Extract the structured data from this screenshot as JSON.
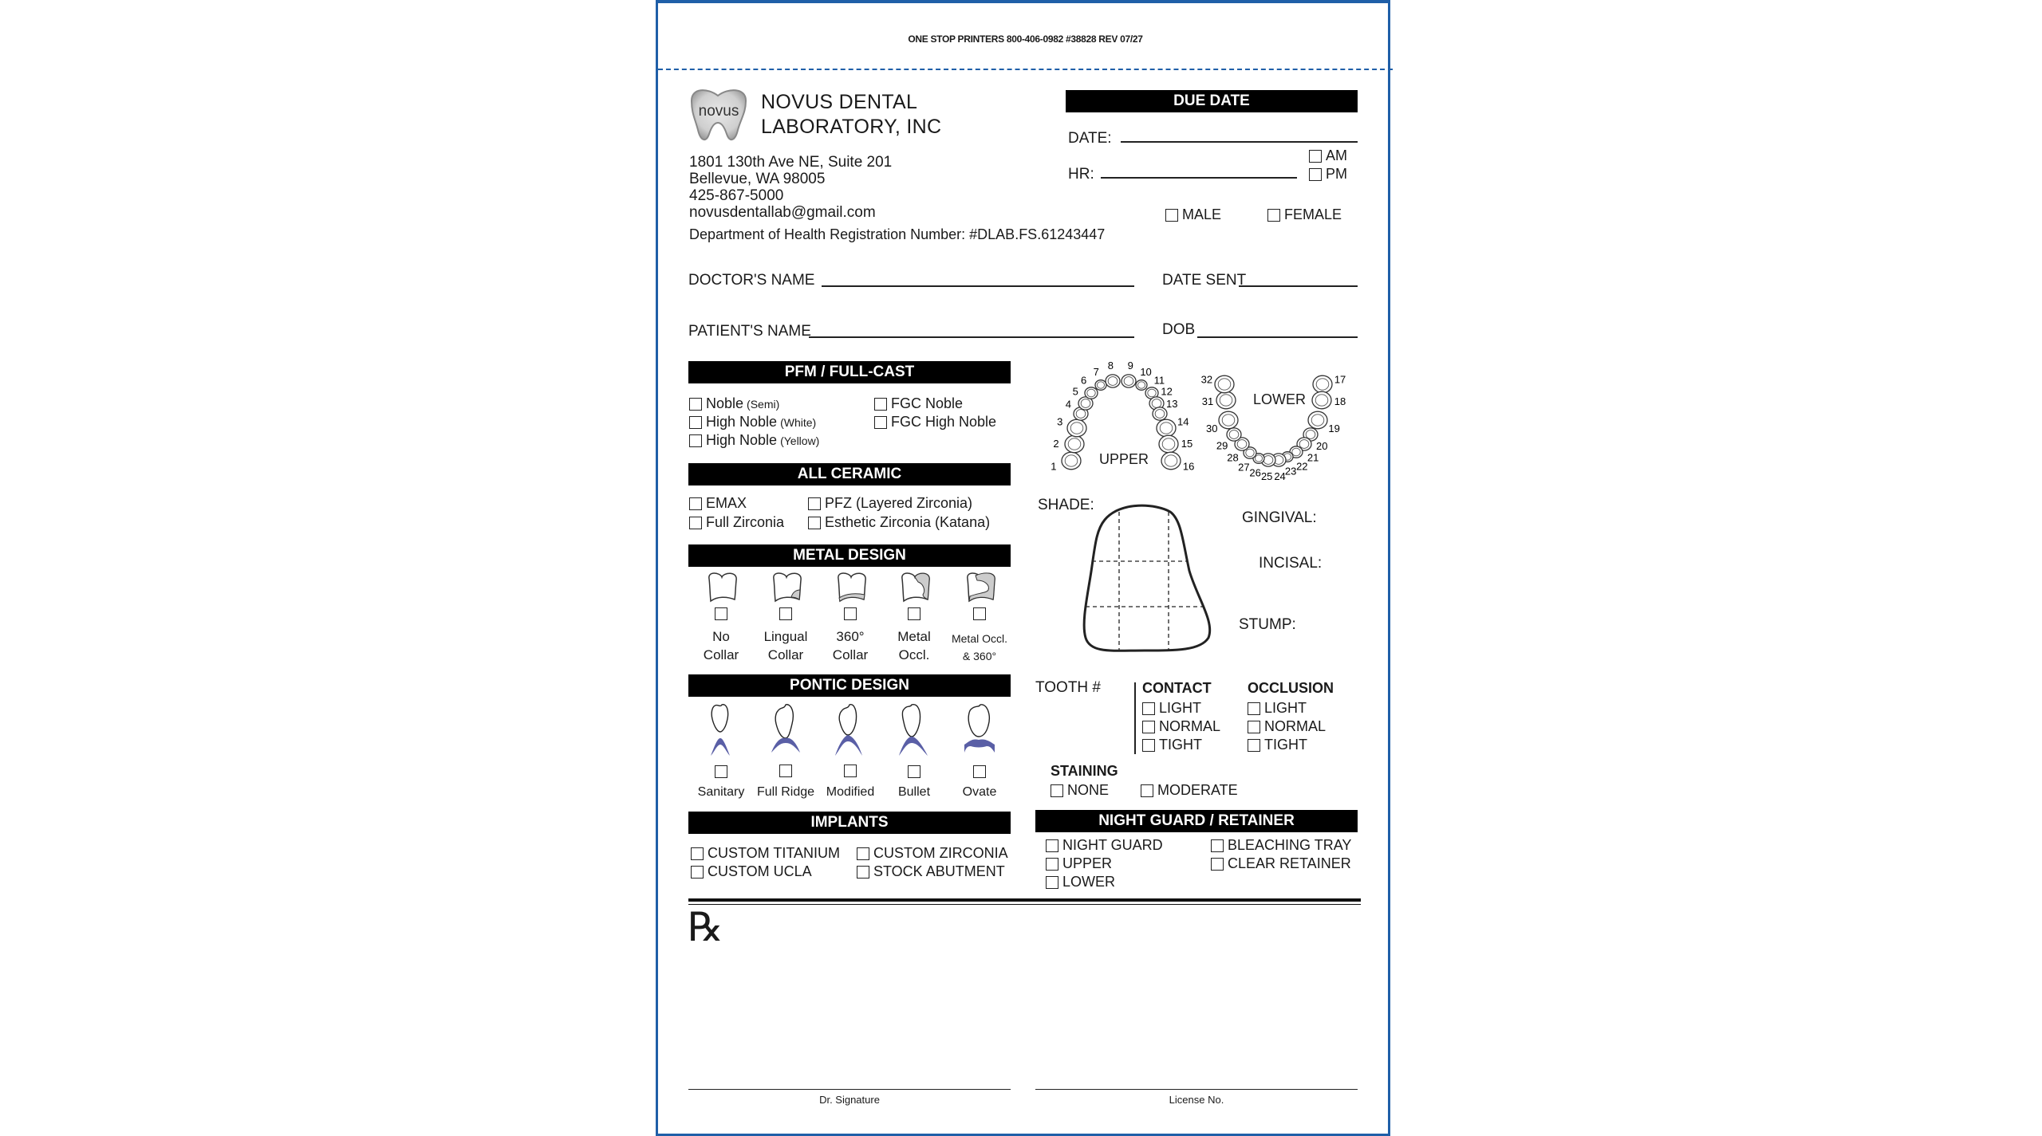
{
  "header": {
    "printer_line": "ONE STOP PRINTERS 800-406-0982 #38828 REV 07/27"
  },
  "lab": {
    "logo_text": "novus",
    "name_line1": "NOVUS DENTAL",
    "name_line2": "LABORATORY, INC",
    "address1": "1801 130th Ave NE, Suite 201",
    "address2": "Bellevue, WA 98005",
    "phone": "425-867-5000",
    "email": "novusdentallab@gmail.com",
    "registration": "Department of Health Registration Number: #DLAB.FS.61243447"
  },
  "due_date": {
    "title": "DUE DATE",
    "date_label": "DATE:",
    "hr_label": "HR:",
    "am": "AM",
    "pm": "PM"
  },
  "gender": {
    "male": "MALE",
    "female": "FEMALE"
  },
  "fields": {
    "doctor": "DOCTOR'S NAME",
    "date_sent": "DATE SENT",
    "patient": "PATIENT'S NAME",
    "dob": "DOB"
  },
  "pfm": {
    "title": "PFM / FULL-CAST",
    "items": [
      {
        "label": "Noble",
        "sub": "(Semi)"
      },
      {
        "label": "High Noble",
        "sub": "(White)"
      },
      {
        "label": "High Noble",
        "sub": "(Yellow)"
      },
      {
        "label": "FGC Noble"
      },
      {
        "label": "FGC High Noble"
      }
    ]
  },
  "all_ceramic": {
    "title": "ALL CERAMIC",
    "items": [
      "EMAX",
      "Full Zirconia",
      "PFZ (Layered Zirconia)",
      "Esthetic Zirconia (Katana)"
    ]
  },
  "metal_design": {
    "title": "METAL DESIGN",
    "items": [
      {
        "line1": "No",
        "line2": "Collar"
      },
      {
        "line1": "Lingual",
        "line2": "Collar"
      },
      {
        "line1": "360°",
        "line2": "Collar"
      },
      {
        "line1": "Metal",
        "line2": "Occl."
      },
      {
        "line1": "Metal Occl.",
        "line2": "& 360°"
      }
    ]
  },
  "pontic_design": {
    "title": "PONTIC DESIGN",
    "items": [
      "Sanitary",
      "Full Ridge",
      "Modified",
      "Bullet",
      "Ovate"
    ],
    "tissue_color": "#5a5fa6"
  },
  "implants": {
    "title": "IMPLANTS",
    "items": [
      "CUSTOM TITANIUM",
      "CUSTOM UCLA",
      "CUSTOM ZIRCONIA",
      "STOCK ABUTMENT"
    ]
  },
  "tooth_chart": {
    "upper_label": "UPPER",
    "lower_label": "LOWER",
    "upper_numbers": [
      "1",
      "2",
      "3",
      "4",
      "5",
      "6",
      "7",
      "8",
      "9",
      "10",
      "11",
      "12",
      "13",
      "14",
      "15",
      "16"
    ],
    "lower_numbers": [
      "17",
      "18",
      "19",
      "20",
      "21",
      "22",
      "23",
      "24",
      "25",
      "26",
      "27",
      "28",
      "29",
      "30",
      "31",
      "32"
    ]
  },
  "shade": {
    "label": "SHADE:",
    "gingival": "GINGIVAL:",
    "incisal": "INCISAL:",
    "stump": "STUMP:"
  },
  "tooth_number_label": "TOOTH #",
  "contact": {
    "title": "CONTACT",
    "items": [
      "LIGHT",
      "NORMAL",
      "TIGHT"
    ]
  },
  "occlusion": {
    "title": "OCCLUSION",
    "items": [
      "LIGHT",
      "NORMAL",
      "TIGHT"
    ]
  },
  "staining": {
    "title": "STAINING",
    "items": [
      "NONE",
      "MODERATE"
    ]
  },
  "night_guard": {
    "title": "NIGHT GUARD / RETAINER",
    "items": [
      "NIGHT GUARD",
      "UPPER",
      "LOWER",
      "BLEACHING TRAY",
      "CLEAR RETAINER"
    ]
  },
  "rx_symbol": "℞",
  "signature": {
    "doctor": "Dr. Signature",
    "license": "License No."
  },
  "colors": {
    "border": "#1f5fa8",
    "bar": "#000000"
  }
}
